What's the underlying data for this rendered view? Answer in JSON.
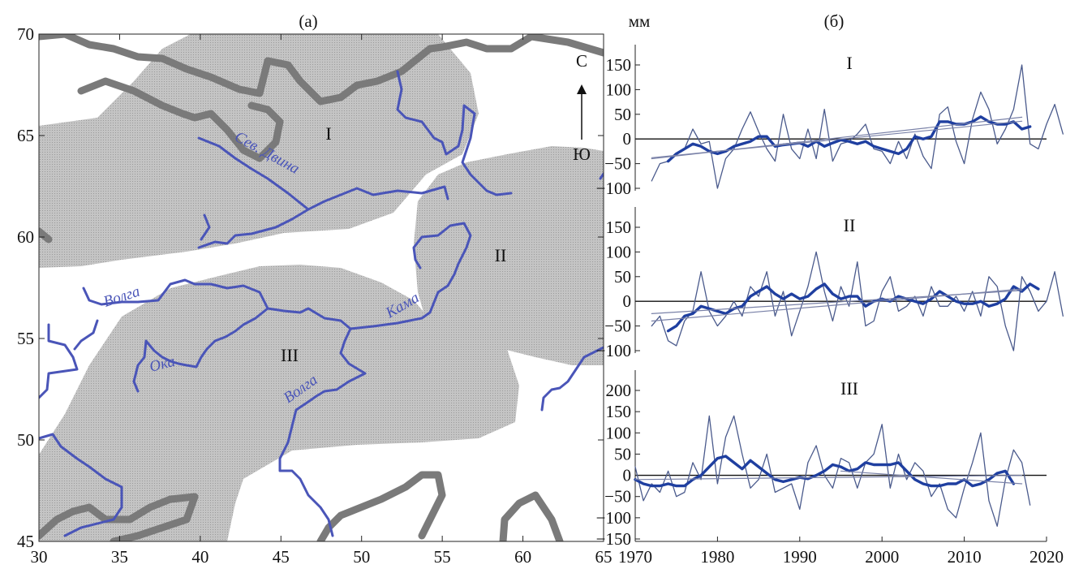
{
  "panel_a": {
    "label": "(а)",
    "x_ticks": [
      "30",
      "35",
      "40",
      "45",
      "50",
      "55",
      "60",
      "65"
    ],
    "y_ticks": [
      "70",
      "65",
      "60",
      "55",
      "50",
      "45"
    ],
    "region_labels": [
      "I",
      "II",
      "III"
    ],
    "rivers": {
      "sev_dvina": "Сев. Двина",
      "volga_north": "Волга",
      "oka": "Ока",
      "kama": "Кама",
      "volga_south": "Волга"
    },
    "compass": {
      "north": "С",
      "south": "Ю"
    },
    "colors": {
      "region": "#bdbdbd",
      "river": "#4a55b8",
      "coast": "#7a7a7a"
    }
  },
  "panel_b": {
    "label": "(б)",
    "unit": "мм",
    "x_ticks": [
      "1970",
      "1980",
      "1990",
      "2000",
      "2010",
      "2020"
    ],
    "colors": {
      "smooth": "#1f3fa0",
      "raw": "#4a5a8c",
      "trend": "#7a82a8"
    }
  },
  "chart_data": [
    {
      "type": "line",
      "title": "I",
      "xlim": [
        1970,
        2020
      ],
      "ylim": [
        -100,
        150
      ],
      "y_ticks": [
        "150",
        "100",
        "50",
        "0",
        "−50",
        "−100"
      ],
      "y_tick_values": [
        150,
        100,
        50,
        0,
        -50,
        -100
      ],
      "series": [
        {
          "x_start": 1972,
          "values": [
            -85,
            -50,
            -45,
            -30,
            -20,
            20,
            -10,
            -5,
            -100,
            -40,
            -20,
            20,
            55,
            15,
            -20,
            -45,
            50,
            -20,
            -40,
            20,
            -40,
            60,
            -45,
            -10,
            -5,
            10,
            30,
            -20,
            -25,
            -50,
            -5,
            -40,
            10,
            -35,
            -60,
            50,
            65,
            -5,
            -50,
            40,
            95,
            60,
            -10,
            20,
            60,
            150,
            -10,
            -20,
            30,
            70,
            10
          ]
        },
        {
          "x_start": 1974,
          "values": [
            -45,
            -30,
            -20,
            -10,
            -15,
            -25,
            -30,
            -25,
            -15,
            -10,
            -5,
            5,
            5,
            -15,
            -12,
            -10,
            -8,
            -15,
            -5,
            -15,
            -8,
            -2,
            -5,
            -10,
            -5,
            -15,
            -20,
            -25,
            -30,
            -20,
            5,
            0,
            5,
            35,
            35,
            30,
            30,
            35,
            45,
            35,
            30,
            30,
            35,
            20,
            25
          ]
        },
        {
          "x_start": 1972,
          "x_end": 2017,
          "values": [
            -38,
            36
          ]
        },
        {
          "x_start": 1972,
          "x_end": 2017,
          "values": [
            -40,
            44
          ]
        }
      ]
    },
    {
      "type": "line",
      "title": "II",
      "xlim": [
        1970,
        2020
      ],
      "ylim": [
        -100,
        150
      ],
      "y_ticks": [
        "150",
        "100",
        "50",
        "0",
        "−50",
        "−100"
      ],
      "y_tick_values": [
        150,
        100,
        50,
        0,
        -50,
        -100
      ],
      "series": [
        {
          "x_start": 1972,
          "values": [
            -50,
            -30,
            -80,
            -90,
            -40,
            -20,
            60,
            -20,
            -50,
            -30,
            0,
            -30,
            30,
            10,
            60,
            -30,
            20,
            -70,
            -20,
            30,
            100,
            20,
            -40,
            30,
            -10,
            80,
            -50,
            -40,
            20,
            50,
            -20,
            -10,
            10,
            -30,
            30,
            -10,
            -10,
            10,
            -20,
            20,
            -30,
            50,
            30,
            -50,
            -100,
            50,
            20,
            -20,
            0,
            60,
            -30
          ]
        },
        {
          "x_start": 1974,
          "values": [
            -60,
            -50,
            -30,
            -25,
            -10,
            -15,
            -20,
            -25,
            -15,
            -10,
            10,
            20,
            30,
            15,
            5,
            15,
            5,
            10,
            25,
            35,
            15,
            5,
            10,
            10,
            -10,
            0,
            5,
            0,
            10,
            5,
            0,
            -5,
            5,
            20,
            10,
            0,
            -5,
            -5,
            0,
            -10,
            -5,
            5,
            30,
            20,
            35,
            25
          ]
        },
        {
          "x_start": 1972,
          "x_end": 2017,
          "values": [
            -25,
            22
          ]
        },
        {
          "x_start": 1972,
          "x_end": 2017,
          "values": [
            -40,
            25
          ]
        }
      ]
    },
    {
      "type": "line",
      "title": "III",
      "xlim": [
        1970,
        2020
      ],
      "ylim": [
        -150,
        200
      ],
      "y_ticks": [
        "200",
        "150",
        "100",
        "50",
        "0",
        "−50",
        "−100",
        "−150"
      ],
      "y_tick_values": [
        200,
        150,
        100,
        50,
        0,
        -50,
        -100,
        -150
      ],
      "series": [
        {
          "x_start": 1970,
          "values": [
            20,
            -60,
            -20,
            -40,
            10,
            -50,
            -40,
            30,
            -10,
            140,
            -20,
            90,
            140,
            50,
            -30,
            -10,
            50,
            -40,
            -30,
            -20,
            -80,
            30,
            70,
            0,
            -30,
            40,
            30,
            -30,
            30,
            50,
            120,
            -30,
            50,
            -10,
            30,
            10,
            -50,
            -20,
            -80,
            -100,
            -30,
            30,
            100,
            -60,
            -120,
            -10,
            60,
            30,
            -70
          ]
        },
        {
          "x_start": 1970,
          "values": [
            -10,
            -20,
            -25,
            -25,
            -20,
            -25,
            -25,
            -10,
            0,
            20,
            40,
            45,
            30,
            15,
            35,
            20,
            5,
            -10,
            -15,
            -10,
            -5,
            -8,
            0,
            10,
            25,
            20,
            10,
            15,
            30,
            25,
            25,
            25,
            30,
            10,
            -10,
            -20,
            -25,
            -25,
            -20,
            -20,
            -10,
            -25,
            -20,
            -10,
            5,
            10,
            -20
          ]
        },
        {
          "x_start": 1970,
          "x_end": 2017,
          "values": [
            -10,
            0
          ]
        },
        {
          "x_start": 1995,
          "x_end": 2017,
          "values": [
            10,
            -20
          ]
        }
      ]
    }
  ]
}
